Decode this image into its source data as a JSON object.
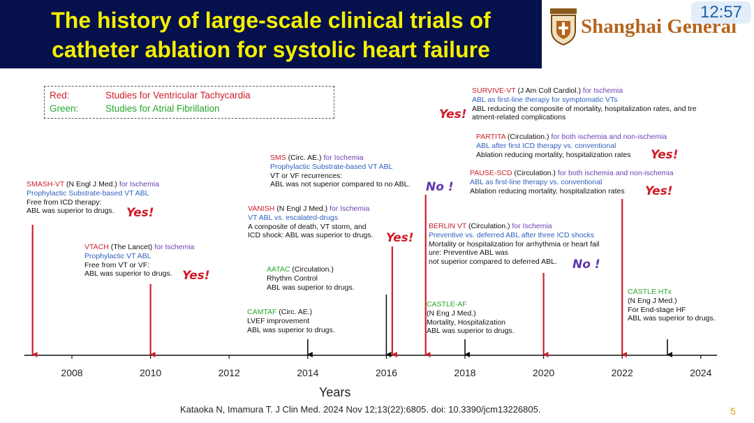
{
  "header": {
    "title_line1": "The history of large-scale clinical trials of",
    "title_line2": "catheter ablation for systolic heart failure",
    "hospital": "Shanghai General",
    "clock": "12:57"
  },
  "legend": {
    "red_key": "Red:",
    "red_text": "Studies for Ventricular Tachycardia",
    "green_key": "Green:",
    "green_text": "Studies for Atrial Fibrillation"
  },
  "studies": {
    "smash": {
      "name": "SMASH-VT",
      "journal": " (N Engl J Med.)",
      "pop": " for Ischemia",
      "design": "Prophylactic Substrate-based VT ABL",
      "l1": "Free from ICD therapy:",
      "l2": "ABL was superior to drugs.",
      "verdict": "Yes!"
    },
    "vtach": {
      "name": "VTACH",
      "journal": " (The Lancet)",
      "pop": " for Ischemia",
      "design": "Prophylactic VT ABL",
      "l1": "Free from VT or VF:",
      "l2": "ABL was superior to drugs.",
      "verdict": "Yes!"
    },
    "camtaf": {
      "name": "CAMTAF",
      "journal": " (Circ. AE.)",
      "l1": "LVEF improvement",
      "l2": "ABL was superior to drugs."
    },
    "aatac": {
      "name": "AATAC",
      "journal": " (Circulation.)",
      "l1": "Rhythm Control",
      "l2": "ABL was superior to drugs."
    },
    "vanish": {
      "name": "VANISH",
      "journal": " (N Engl J Med.)",
      "pop": " for Ischemia",
      "design": "VT ABL vs. escalated-drugs",
      "l1": "A composite of death, VT storm, and",
      "l2": "ICD shock: ABL was superior to drugs.",
      "verdict": "Yes!"
    },
    "sms": {
      "name": "SMS",
      "journal": " (Circ. AE.)",
      "pop": " for Ischemia",
      "design": "Prophylactic Substrate-based VT ABL",
      "l1": "VT or VF recurrences:",
      "l2": "ABL was not superior compared to no ABL.",
      "verdict": "No !"
    },
    "castleaf": {
      "name": "CASTLE-AF",
      "journal": "(N Eng J Med.)",
      "l1": "Mortality, Hospitalization",
      "l2": "ABL was superior to drugs."
    },
    "berlin": {
      "name": "BERLIN VT",
      "journal": " (Circulation.)",
      "pop": " for Ischemia",
      "design": "Preventive vs. deferred ABL after three ICD shocks",
      "l1": "Mortality or hospitalization for arrhythmia or heart fail",
      "l2": "ure: Preventive ABL was",
      "l3": "not superior compared to deferred ABL.",
      "verdict": "No !"
    },
    "pausescd": {
      "name": "PAUSE-SCD",
      "journal": " (Circulation.)",
      "pop": " for both ischemia and non-ischemia",
      "design": "ABL as first-line therapy vs. conventional",
      "l1": "Ablation reducing mortality, hospitalization rates",
      "verdict": "Yes!"
    },
    "partita": {
      "name": "PARTITA",
      "journal": " (Circulation.)",
      "pop": " for both ischemia and non-ischemia",
      "design": "ABL after first ICD therapy vs. conventional",
      "l1": "Ablation reducing mortality, hospitalization rates",
      "verdict": "Yes!"
    },
    "survive": {
      "name": "SURVIVE-VT",
      "journal": " (J Am Coll Cardiol.)",
      "pop": " for Ischemia",
      "design": "ABL as first-line therapy for symptomatic VTs",
      "l1": "ABL reducing the composite of mortality, hospitalization rates, and tre",
      "l2": "atment-related complications",
      "verdict": "Yes!"
    },
    "castlehtx": {
      "name": "CASTLE HTx",
      "journal": "(N Eng J Med.)",
      "l1": "For End-stage HF",
      "l2": "ABL was superior to drugs."
    }
  },
  "axis": {
    "label": "Years",
    "year_min": 2007,
    "year_max": 2024.5,
    "ticks": [
      2008,
      2010,
      2012,
      2014,
      2016,
      2018,
      2020,
      2022,
      2024
    ],
    "tick_labels": [
      "2008",
      "2010",
      "2012",
      "2014",
      "2016",
      "2018",
      "2020",
      "2022",
      "2024"
    ]
  },
  "markers": [
    {
      "study": "SMASH-VT",
      "year": 2007.0,
      "kind": "VT"
    },
    {
      "study": "VTACH",
      "year": 2010.0,
      "kind": "VT"
    },
    {
      "study": "CAMTAF",
      "year": 2014.0,
      "kind": "AF"
    },
    {
      "study": "AATAC",
      "year": 2016.0,
      "kind": "AF"
    },
    {
      "study": "VANISH",
      "year": 2016.15,
      "kind": "VT"
    },
    {
      "study": "SMS",
      "year": 2017.0,
      "kind": "VT"
    },
    {
      "study": "CASTLE-AF",
      "year": 2018.0,
      "kind": "AF"
    },
    {
      "study": "BERLIN VT",
      "year": 2020.0,
      "kind": "VT"
    },
    {
      "study": "PAUSE-SCD",
      "year": 2022.0,
      "kind": "VT"
    },
    {
      "study": "CASTLE HTx",
      "year": 2023.15,
      "kind": "AF"
    }
  ],
  "colors": {
    "vt": "#cc1f2a",
    "af": "#111111",
    "title_bg": "#06104a",
    "title_fg": "#f4f000"
  },
  "footer": {
    "citation": "Kataoka N, Imamura T. J Clin Med. 2024 Nov 12;13(22):6805. doi: 10.3390/jcm13226805.",
    "page": "5"
  }
}
